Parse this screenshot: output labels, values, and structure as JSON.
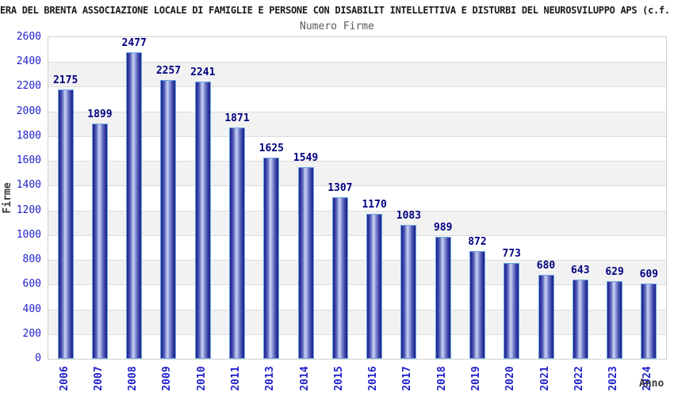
{
  "chart_data": {
    "type": "bar",
    "title": "ERA DEL BRENTA ASSOCIAZIONE LOCALE DI FAMIGLIE E PERSONE CON DISABILIT INTELLETTIVA E DISTURBI DEL NEUROSVILUPPO APS (c.f.",
    "subtitle": "Numero Firme",
    "xlabel": "Anno",
    "ylabel": "Firme",
    "categories": [
      "2006",
      "2007",
      "2008",
      "2009",
      "2010",
      "2011",
      "2013",
      "2014",
      "2015",
      "2016",
      "2017",
      "2018",
      "2019",
      "2020",
      "2021",
      "2022",
      "2023",
      "2024"
    ],
    "values": [
      2175,
      1899,
      2477,
      2257,
      2241,
      1871,
      1625,
      1549,
      1307,
      1170,
      1083,
      989,
      872,
      773,
      680,
      643,
      629,
      609
    ],
    "ylim": [
      0,
      2600
    ],
    "ytick_step": 200,
    "grid": "horizontal-bands-alternating",
    "legend": "none",
    "colors": {
      "bar_dark": "#20248c",
      "bar_highlight": "#cdd4f0",
      "bar_border": "#69a8e0",
      "tick_label": "#2121cc",
      "value_label": "#000080",
      "band_gray": "#f2f2f2",
      "grid_line": "#dcdcdc",
      "title_text": "#1a1a1a",
      "subtitle_text": "#5a5a5a",
      "axis_title_text": "#3a3a3a"
    }
  }
}
